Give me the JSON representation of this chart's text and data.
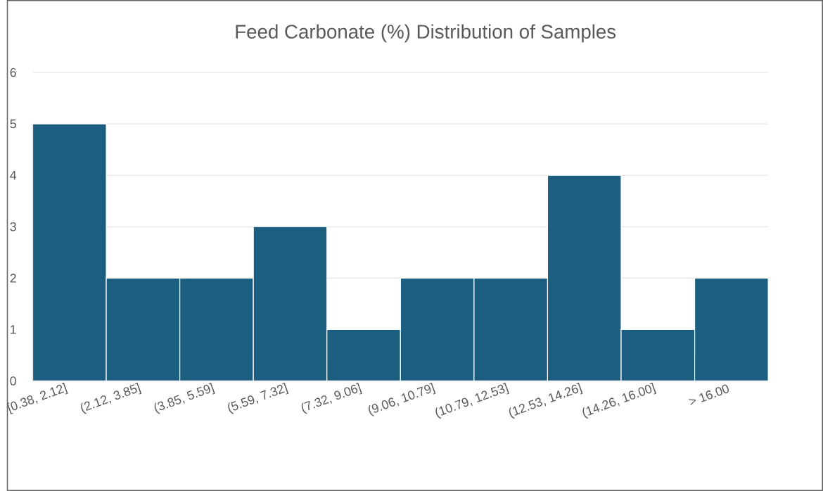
{
  "chart_data": {
    "type": "bar",
    "title": "Feed Carbonate (%) Distribution of Samples",
    "categories": [
      "[0.38, 2.12]",
      "(2.12, 3.85]",
      "(3.85, 5.59]",
      "(5.59, 7.32]",
      "(7.32, 9.06]",
      "(9.06, 10.79]",
      "(10.79, 12.53]",
      "(12.53, 14.26]",
      "(14.26, 16.00]",
      "> 16.00"
    ],
    "values": [
      5,
      2,
      2,
      3,
      1,
      2,
      2,
      4,
      1,
      2
    ],
    "color": "#1b5e7f",
    "ylim": [
      0,
      6
    ],
    "yticks": [
      0,
      1,
      2,
      3,
      4,
      5,
      6
    ],
    "grid": "y"
  }
}
